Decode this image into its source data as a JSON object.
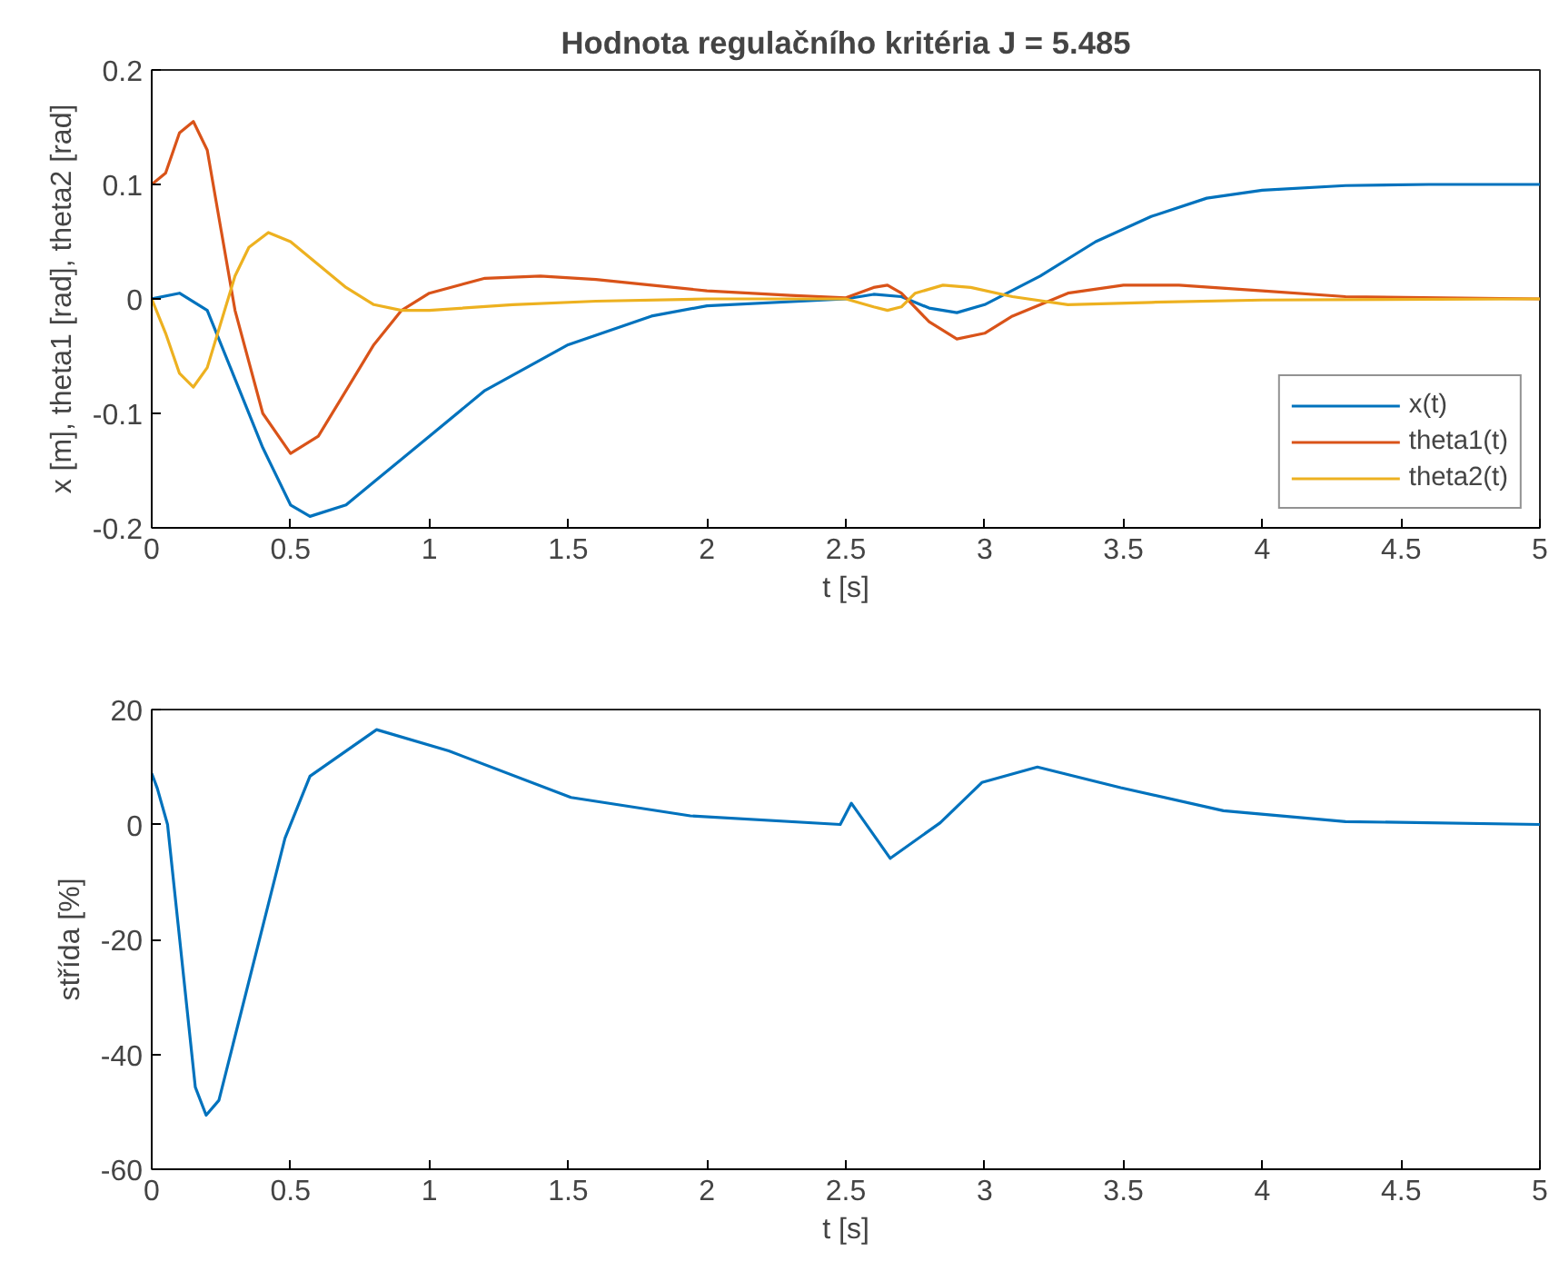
{
  "chart_data": [
    {
      "type": "line",
      "title": "Hodnota regulačního kritéria J = 5.485",
      "xlabel": "t [s]",
      "ylabel": "x [m], theta1 [rad], theta2 [rad]",
      "xlim": [
        0,
        5
      ],
      "ylim": [
        -0.2,
        0.2
      ],
      "xticks": [
        0,
        0.5,
        1,
        1.5,
        2,
        2.5,
        3,
        3.5,
        4,
        4.5,
        5
      ],
      "yticks": [
        -0.2,
        -0.1,
        0,
        0.1,
        0.2
      ],
      "grid": false,
      "legend": "bottom right",
      "marker": "none",
      "line_style": "solid",
      "series": [
        {
          "name": "x(t)",
          "color": "#0072bd",
          "x": [
            0,
            0.1,
            0.2,
            0.3,
            0.4,
            0.5,
            0.57,
            0.7,
            0.8,
            1.0,
            1.2,
            1.5,
            1.8,
            2.0,
            2.5,
            2.6,
            2.7,
            2.8,
            2.9,
            3.0,
            3.2,
            3.4,
            3.6,
            3.8,
            4.0,
            4.3,
            4.6,
            5.0
          ],
          "values": [
            0,
            0.005,
            -0.01,
            -0.07,
            -0.13,
            -0.18,
            -0.19,
            -0.18,
            -0.16,
            -0.12,
            -0.08,
            -0.04,
            -0.015,
            -0.006,
            0,
            0.004,
            0.002,
            -0.008,
            -0.012,
            -0.005,
            0.02,
            0.05,
            0.072,
            0.088,
            0.095,
            0.099,
            0.1,
            0.1
          ]
        },
        {
          "name": "theta1(t)",
          "color": "#d95319",
          "x": [
            0,
            0.05,
            0.1,
            0.15,
            0.2,
            0.25,
            0.3,
            0.4,
            0.5,
            0.6,
            0.7,
            0.8,
            0.9,
            1.0,
            1.2,
            1.4,
            1.6,
            1.8,
            2.0,
            2.3,
            2.5,
            2.6,
            2.65,
            2.7,
            2.8,
            2.9,
            3.0,
            3.1,
            3.3,
            3.5,
            3.7,
            4.0,
            4.3,
            5.0
          ],
          "values": [
            0.1,
            0.11,
            0.145,
            0.155,
            0.13,
            0.06,
            -0.01,
            -0.1,
            -0.135,
            -0.12,
            -0.08,
            -0.04,
            -0.01,
            0.005,
            0.018,
            0.02,
            0.017,
            0.012,
            0.007,
            0.003,
            0.001,
            0.01,
            0.012,
            0.005,
            -0.02,
            -0.035,
            -0.03,
            -0.015,
            0.005,
            0.012,
            0.012,
            0.007,
            0.002,
            0
          ]
        },
        {
          "name": "theta2(t)",
          "color": "#edb120",
          "x": [
            0,
            0.05,
            0.1,
            0.15,
            0.2,
            0.3,
            0.35,
            0.42,
            0.5,
            0.6,
            0.7,
            0.8,
            0.9,
            1.0,
            1.3,
            1.6,
            2.0,
            2.5,
            2.6,
            2.65,
            2.7,
            2.75,
            2.85,
            2.95,
            3.1,
            3.3,
            3.6,
            4.0,
            5.0
          ],
          "values": [
            0,
            -0.03,
            -0.065,
            -0.077,
            -0.06,
            0.02,
            0.045,
            0.058,
            0.05,
            0.03,
            0.01,
            -0.005,
            -0.01,
            -0.01,
            -0.005,
            -0.002,
            0,
            0,
            -0.007,
            -0.01,
            -0.007,
            0.005,
            0.012,
            0.01,
            0.002,
            -0.005,
            -0.003,
            -0.001,
            0
          ]
        }
      ]
    },
    {
      "type": "line",
      "xlabel": "t [s]",
      "ylabel": "střída [%]",
      "xlim": [
        0,
        5
      ],
      "ylim": [
        -60,
        20
      ],
      "xticks": [
        0,
        0.5,
        1,
        1.5,
        2,
        2.5,
        3,
        3.5,
        4,
        4.5,
        5
      ],
      "yticks": [
        -60,
        -40,
        -20,
        0,
        20
      ],
      "grid": false,
      "legend": false,
      "marker": "none",
      "line_style": "solid",
      "series": [
        {
          "color": "#0072bd",
          "x": [
            0,
            0.02,
            0.057,
            0.157,
            0.196,
            0.242,
            0.48,
            0.57,
            0.81,
            1.07,
            1.51,
            1.94,
            2.48,
            2.52,
            2.66,
            2.84,
            2.99,
            3.19,
            3.49,
            3.86,
            4.3,
            5.0
          ],
          "values": [
            8.9,
            6.3,
            0,
            -45.7,
            -50.6,
            -48,
            -2.4,
            8.4,
            16.5,
            12.8,
            4.7,
            1.5,
            0,
            3.7,
            -5.9,
            0.3,
            7.3,
            10,
            6.4,
            2.4,
            0.5,
            0
          ]
        }
      ]
    }
  ]
}
